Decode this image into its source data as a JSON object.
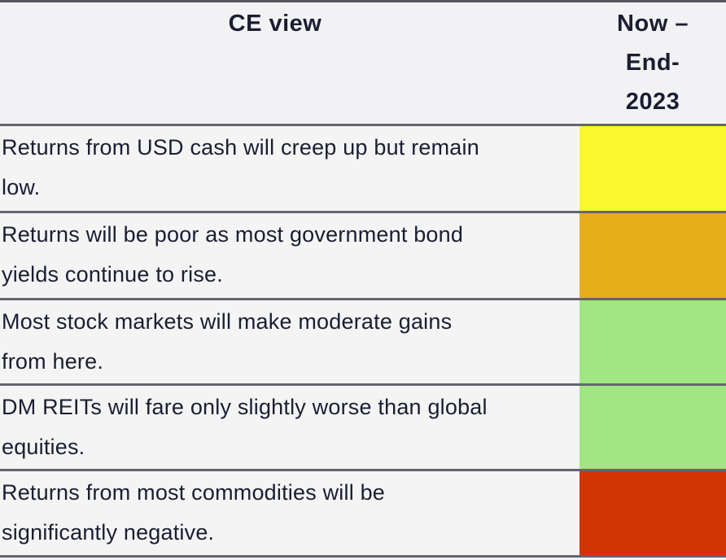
{
  "table": {
    "header": {
      "view_label": "CE view",
      "period_label": "Now – End-2023",
      "period_lines": [
        "Now –",
        "End-",
        "2023"
      ]
    },
    "rows": [
      {
        "text": "Returns from USD cash will creep up but remain low.",
        "lines": [
          "Returns from USD cash will creep up but remain",
          "low."
        ],
        "rating": "yellow",
        "color": "#f9f72e"
      },
      {
        "text": "Returns will be poor as most government bond yields continue to rise.",
        "lines": [
          "Returns will be poor as most government bond",
          "yields continue to rise."
        ],
        "rating": "amber",
        "color": "#e5ad18"
      },
      {
        "text": "Most stock markets will make moderate gains from here.",
        "lines": [
          "Most stock markets will make moderate gains",
          "from here."
        ],
        "rating": "light-green",
        "color": "#a0e681"
      },
      {
        "text": "DM REITs will fare only slightly worse than global equities.",
        "lines": [
          "DM REITs will fare only slightly worse than global",
          "equities."
        ],
        "rating": "light-green",
        "color": "#a0e681"
      },
      {
        "text": "Returns from most commodities will be significantly negative.",
        "lines": [
          "Returns from most commodities will be",
          "significantly negative."
        ],
        "rating": "red",
        "color": "#d23405"
      }
    ]
  },
  "colors": {
    "header_background": "#f2f2f4",
    "row_background": "#f4f4f5",
    "border": "#65656f",
    "text": "#1a1e31",
    "page_background": "#f1f2f7"
  }
}
